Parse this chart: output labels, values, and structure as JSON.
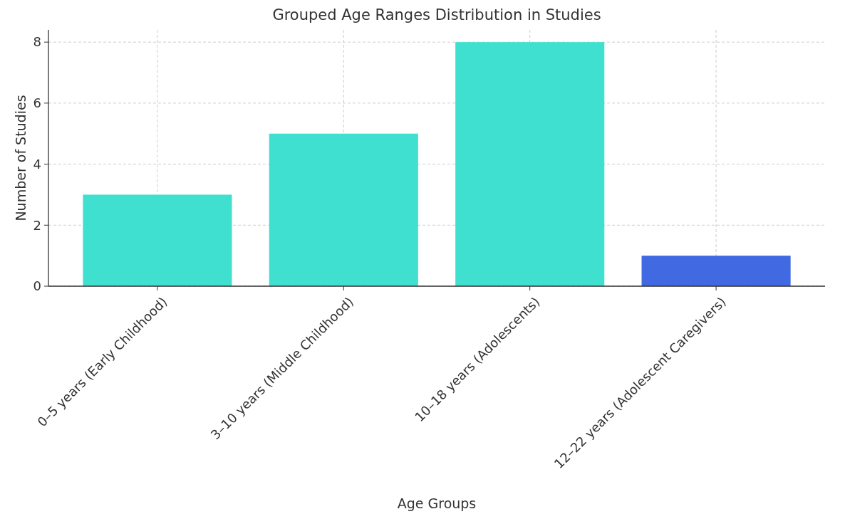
{
  "chart_data": {
    "type": "bar",
    "title": "Grouped Age Ranges Distribution in Studies",
    "xlabel": "Age Groups",
    "ylabel": "Number of Studies",
    "categories": [
      "0–5 years (Early Childhood)",
      "3–10 years (Middle Childhood)",
      "10–18 years (Adolescents)",
      "12–22 years (Adolescent Caregivers)"
    ],
    "values": [
      3,
      5,
      8,
      1
    ],
    "colors": [
      "#40e0d0",
      "#40e0d0",
      "#40e0d0",
      "#4169e1"
    ],
    "ylim": [
      0,
      8.4
    ],
    "yticks": [
      0,
      2,
      4,
      6,
      8
    ],
    "grid": true
  }
}
